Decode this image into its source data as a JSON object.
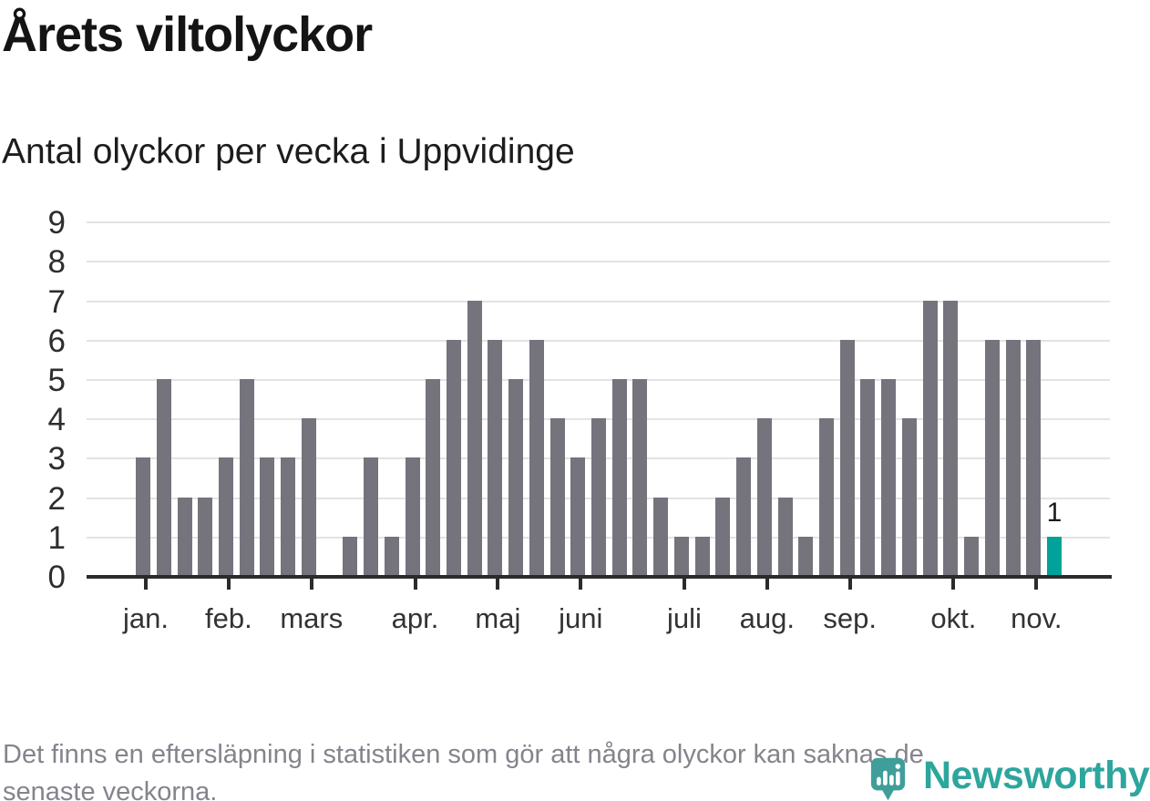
{
  "header": {
    "title": "Årets viltolyckor",
    "subtitle": "Antal olyckor per vecka i Uppvidinge"
  },
  "chart_data": {
    "type": "bar",
    "title": "Årets viltolyckor",
    "subtitle": "Antal olyckor per vecka i Uppvidinge",
    "x_unit": "vecka",
    "values": [
      3,
      5,
      2,
      2,
      3,
      5,
      3,
      3,
      4,
      0,
      1,
      3,
      1,
      3,
      5,
      6,
      7,
      6,
      5,
      6,
      4,
      3,
      4,
      5,
      5,
      2,
      1,
      1,
      2,
      3,
      4,
      2,
      1,
      4,
      6,
      5,
      5,
      4,
      7,
      7,
      1,
      6,
      6,
      6,
      1
    ],
    "highlight_index": 44,
    "highlight_value_label": "1",
    "y_ticks": [
      0,
      1,
      2,
      3,
      4,
      5,
      6,
      7,
      8,
      9
    ],
    "ylim": [
      0,
      9
    ],
    "x_tick_labels": [
      "jan.",
      "feb.",
      "mars",
      "apr.",
      "maj",
      "juni",
      "juli",
      "aug.",
      "sep.",
      "okt.",
      "nov."
    ],
    "x_tick_bar_indices": [
      0,
      4,
      8,
      13,
      17,
      21,
      26,
      30,
      34,
      39,
      43
    ],
    "grid": "horizontal",
    "legend": "none",
    "colors": {
      "bar": "#75737c",
      "highlight": "#00a29a",
      "gridline": "#e3e3e3",
      "axis": "#2b2b2b",
      "axis_label": "#2d2d2d"
    }
  },
  "footer": {
    "note_line1": "Det finns en eftersläpning i statistiken som gör att några olyckor kan saknas de",
    "note_line2": "senaste veckorna.",
    "logo_text": "Newsworthy",
    "logo_color": "#2da69d",
    "logo_pin_color": "#3f9e9a"
  }
}
